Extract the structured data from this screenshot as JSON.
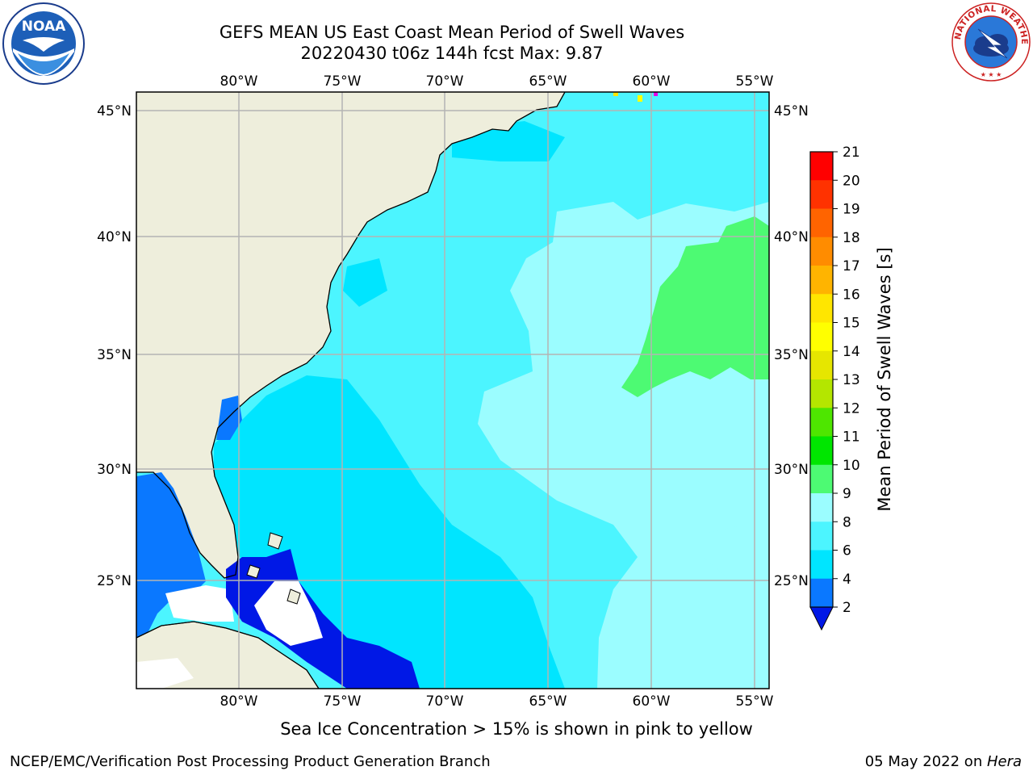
{
  "title_line1": "GEFS MEAN US East Coast Mean Period of Swell Waves",
  "title_line2": "20220430 t06z 144h fcst   Max: 9.87",
  "lon_labels": [
    "80°W",
    "75°W",
    "70°W",
    "65°W",
    "60°W",
    "55°W"
  ],
  "lat_labels": [
    "45°N",
    "40°N",
    "35°N",
    "30°N",
    "25°N"
  ],
  "colorbar": {
    "label": "Mean Period of Swell Waves [s]",
    "ticks": [
      "2",
      "4",
      "6",
      "8",
      "9",
      "10",
      "11",
      "12",
      "13",
      "14",
      "15",
      "16",
      "17",
      "18",
      "19",
      "20",
      "21"
    ],
    "colors": [
      "#0a78ff",
      "#00e5ff",
      "#4cf5ff",
      "#9bfdff",
      "#4dfa73",
      "#00e600",
      "#4ee600",
      "#b4e600",
      "#e6e600",
      "#ffff00",
      "#ffe600",
      "#ffb400",
      "#ff8c00",
      "#ff6400",
      "#ff3200",
      "#ff0000"
    ],
    "under_color": "#0018e6"
  },
  "colors": {
    "land": "#eeeedc",
    "ocean_base": "#4cf5ff",
    "ocean_light": "#9bfdff",
    "ocean_mid": "#00e5ff",
    "green": "#4dfa73",
    "blue": "#0a78ff",
    "dark_blue": "#0018e6",
    "grid": "#b4b4b4"
  },
  "note": "Sea Ice Concentration > 15% is shown in pink to yellow",
  "footer": {
    "org": "NCEP/EMC/Verification Post Processing Product Generation Branch",
    "date": "05 May 2022 on ",
    "machine": "Hera"
  },
  "logos": {
    "noaa_text": "NOAA",
    "nws_text": "NATIONAL WEATHER SERVICE"
  }
}
